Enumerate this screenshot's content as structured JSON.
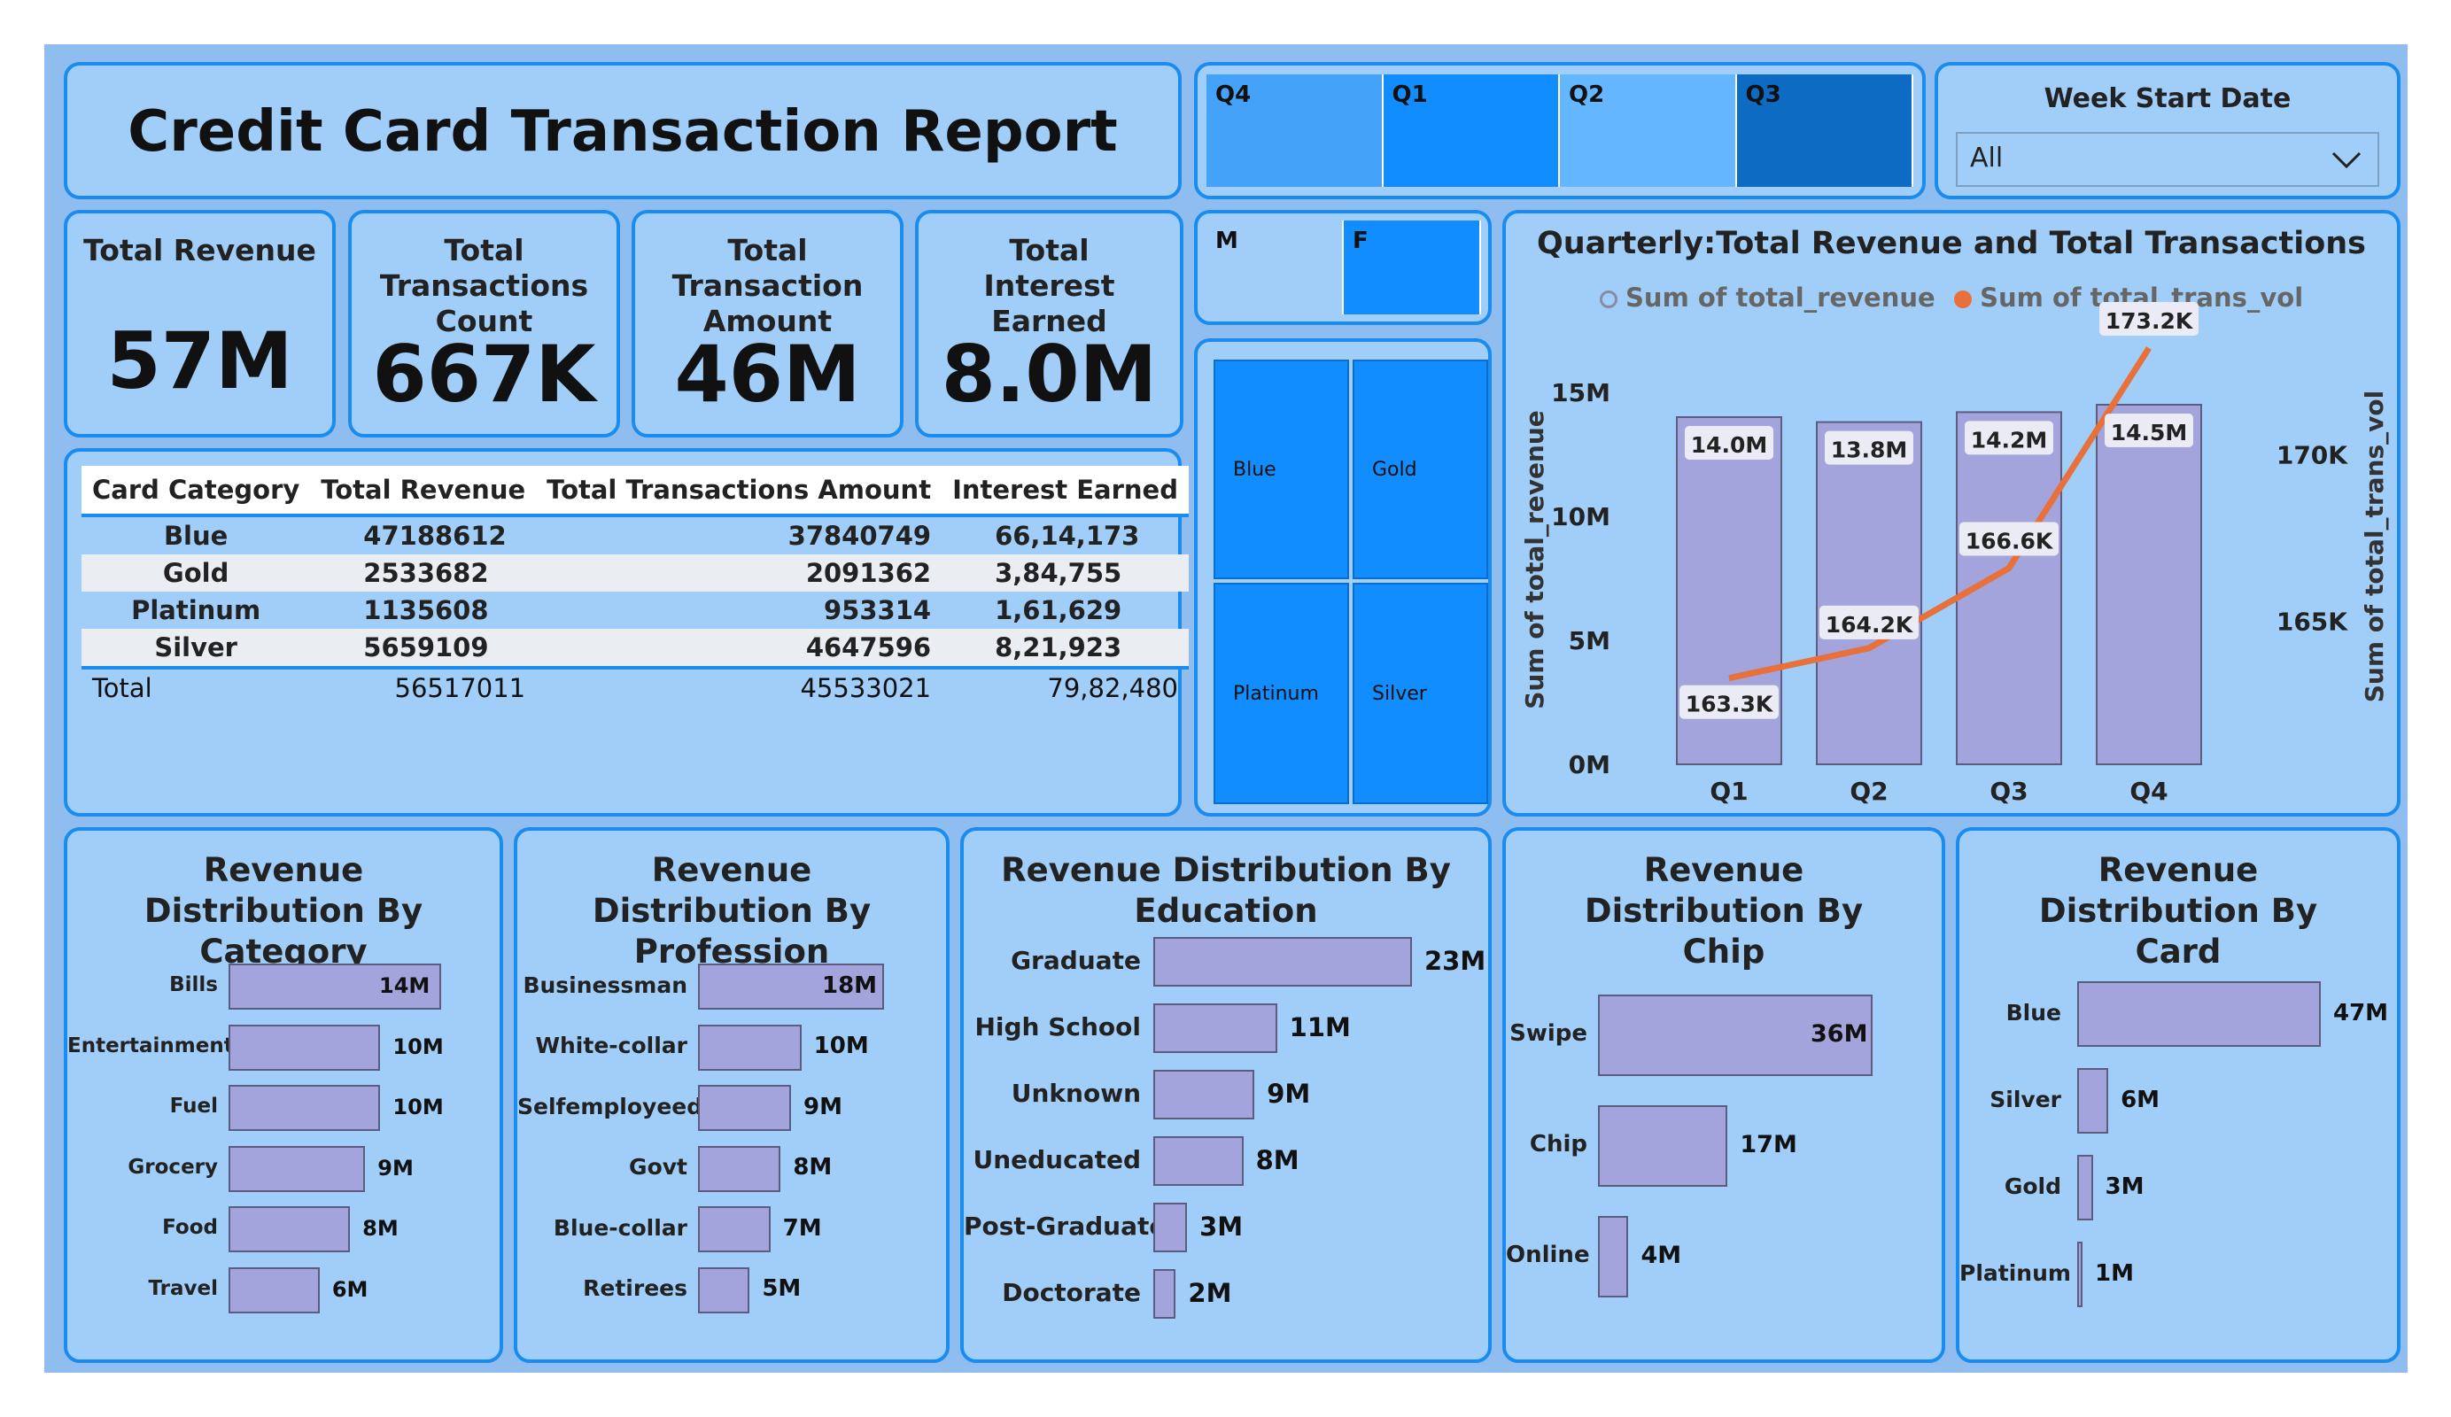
{
  "title": "Credit Card Transaction Report",
  "quarter_slicer": [
    {
      "label": "Q4",
      "color": "#44a2f8"
    },
    {
      "label": "Q1",
      "color": "#118dff"
    },
    {
      "label": "Q2",
      "color": "#64b7ff"
    },
    {
      "label": "Q3",
      "color": "#0d6bc3"
    }
  ],
  "week_filter": {
    "label": "Week Start Date",
    "value": "All"
  },
  "kpis": [
    {
      "label": "Total Revenue",
      "value": "57M"
    },
    {
      "label": "Total Transactions Count",
      "value": "667K"
    },
    {
      "label": "Total Transaction Amount",
      "value": "46M"
    },
    {
      "label": "Total Interest Earned",
      "value": "8.0M"
    }
  ],
  "gender_slicer": [
    {
      "label": "M",
      "color": "#a0cef9"
    },
    {
      "label": "F",
      "color": "#118dff"
    }
  ],
  "card_treemap": [
    "Blue",
    "Gold",
    "Platinum",
    "Silver"
  ],
  "table": {
    "headers": [
      "Card Category",
      "Total Revenue",
      "Total Transactions Amount",
      "Interest Earned"
    ],
    "rows": [
      [
        "Blue",
        "47188612",
        "37840749",
        "66,14,173"
      ],
      [
        "Gold",
        "2533682",
        "2091362",
        "3,84,755"
      ],
      [
        "Platinum",
        "1135608",
        "953314",
        "1,61,629"
      ],
      [
        "Silver",
        "5659109",
        "4647596",
        "8,21,923"
      ]
    ],
    "total": [
      "Total",
      "56517011",
      "45533021",
      "79,82,480"
    ]
  },
  "chart_data": [
    {
      "type": "bar+line",
      "title": "Quarterly:Total Revenue and Total Transactions",
      "legend": [
        "Sum of total_revenue",
        "Sum of total_trans_vol"
      ],
      "legend_colors": [
        "#8a8aa8",
        "#e8703a"
      ],
      "categories": [
        "Q1",
        "Q2",
        "Q3",
        "Q4"
      ],
      "series": [
        {
          "name": "Sum of total_revenue",
          "type": "bar",
          "values": [
            14.0,
            13.8,
            14.2,
            14.5
          ],
          "labels": [
            "14.0M",
            "13.8M",
            "14.2M",
            "14.5M"
          ]
        },
        {
          "name": "Sum of total_trans_vol",
          "type": "line",
          "values": [
            163.3,
            164.2,
            166.6,
            173.2
          ],
          "labels": [
            "163.3K",
            "164.2K",
            "166.6K",
            "173.2K"
          ]
        }
      ],
      "ylabel": "Sum of total_revenue",
      "y2label": "Sum of total_trans_vol",
      "yticks": [
        "0M",
        "5M",
        "10M",
        "15M"
      ],
      "y2ticks": [
        "165K",
        "170K"
      ],
      "ylim": [
        0,
        15
      ],
      "y2lim": [
        161.3,
        173.2
      ]
    },
    {
      "type": "bar",
      "title": "Revenue Distribution By Category",
      "categories": [
        "Bills",
        "Entertainment",
        "Fuel",
        "Grocery",
        "Food",
        "Travel"
      ],
      "values": [
        14,
        10,
        10,
        9,
        8,
        6
      ],
      "labels": [
        "14M",
        "10M",
        "10M",
        "9M",
        "8M",
        "6M"
      ]
    },
    {
      "type": "bar",
      "title": "Revenue Distribution By Profession",
      "categories": [
        "Businessman",
        "White-collar",
        "Selfemployeed",
        "Govt",
        "Blue-collar",
        "Retirees"
      ],
      "values": [
        18,
        10,
        9,
        8,
        7,
        5
      ],
      "labels": [
        "18M",
        "10M",
        "9M",
        "8M",
        "7M",
        "5M"
      ]
    },
    {
      "type": "bar",
      "title": "Revenue Distribution By Education",
      "categories": [
        "Graduate",
        "High School",
        "Unknown",
        "Uneducated",
        "Post-Graduate",
        "Doctorate"
      ],
      "values": [
        23,
        11,
        9,
        8,
        3,
        2
      ],
      "labels": [
        "23M",
        "11M",
        "9M",
        "8M",
        "3M",
        "2M"
      ]
    },
    {
      "type": "bar",
      "title": "Revenue Distribution By Chip",
      "categories": [
        "Swipe",
        "Chip",
        "Online"
      ],
      "values": [
        36,
        17,
        4
      ],
      "labels": [
        "36M",
        "17M",
        "4M"
      ]
    },
    {
      "type": "bar",
      "title": "Revenue Distribution By Card",
      "categories": [
        "Blue",
        "Silver",
        "Gold",
        "Platinum"
      ],
      "values": [
        47,
        6,
        3,
        1
      ],
      "labels": [
        "47M",
        "6M",
        "3M",
        "1M"
      ]
    }
  ]
}
